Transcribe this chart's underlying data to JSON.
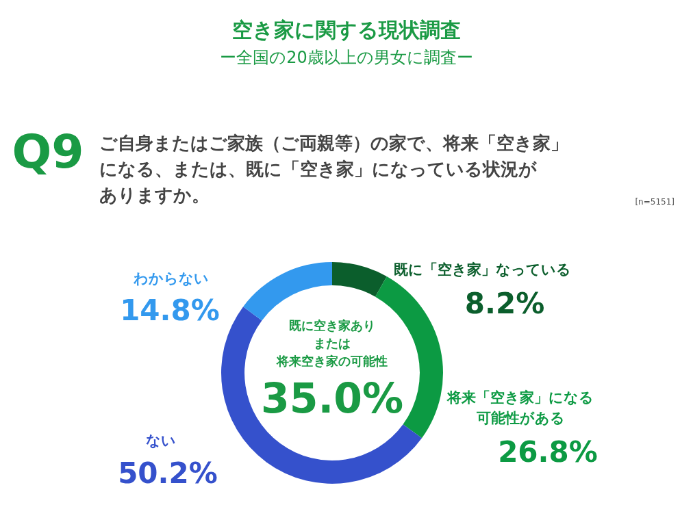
{
  "chart_data": {
    "type": "donut",
    "title": "空き家に関する現状調査",
    "subtitle": "ー全国の20歳以上の男女に調査ー",
    "categories": [
      "既に「空き家」なっている",
      "将来「空き家」になる可能性がある",
      "ない",
      "わからない"
    ],
    "values": [
      8.2,
      26.8,
      50.2,
      14.8
    ],
    "colors": [
      "#0b5e2c",
      "#0c9a43",
      "#3551cc",
      "#3399ee"
    ],
    "value_labels": [
      "8.2%",
      "26.8%",
      "50.2%",
      "14.8%"
    ],
    "annotations": [
      "Q9",
      "ご自身またはご家族（ご両親等）の家で、将来「空き家」になる、または、既に「空き家」になっている状況がありますか。",
      "[n=5151]",
      "既に空き家ありまたは将来空き家の可能性",
      "35.0%"
    ]
  }
}
